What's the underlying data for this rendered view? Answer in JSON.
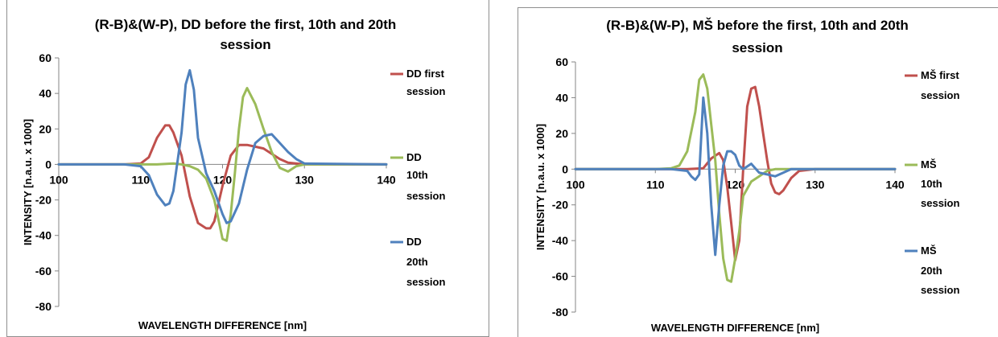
{
  "chart_data": [
    {
      "type": "line",
      "title_line1": "(R-B)&(W-P), DD before the first, 10th and 20th",
      "title_line2": "session",
      "xlabel": "WAVELENGTH DIFFERENCE [nm]",
      "ylabel": "INTENSITY [n.a.u. x 1000]",
      "xlim": [
        100,
        140
      ],
      "ylim": [
        -80,
        60
      ],
      "xticks": [
        100,
        110,
        120,
        130,
        140
      ],
      "yticks": [
        60,
        40,
        20,
        0,
        -20,
        -40,
        -60,
        -80
      ],
      "grid": false,
      "legend_position": "right",
      "series": [
        {
          "name_lines": [
            "DD first",
            "session"
          ],
          "color": "#c0504d",
          "points": [
            [
              100,
              0
            ],
            [
              108,
              0
            ],
            [
              110,
              0.5
            ],
            [
              111,
              4
            ],
            [
              112,
              15
            ],
            [
              113,
              22
            ],
            [
              113.5,
              22
            ],
            [
              114,
              18
            ],
            [
              115,
              5
            ],
            [
              116,
              -18
            ],
            [
              117,
              -33
            ],
            [
              118,
              -36
            ],
            [
              118.5,
              -36
            ],
            [
              119,
              -32
            ],
            [
              120,
              -12
            ],
            [
              121,
              5
            ],
            [
              122,
              11
            ],
            [
              123,
              11
            ],
            [
              124,
              10
            ],
            [
              125,
              9
            ],
            [
              126,
              6
            ],
            [
              127,
              3
            ],
            [
              128,
              1
            ],
            [
              130,
              0
            ],
            [
              140,
              0
            ]
          ]
        },
        {
          "name_lines": [
            "DD",
            "10th",
            "session"
          ],
          "color": "#9bbb59",
          "points": [
            [
              100,
              0
            ],
            [
              112,
              0
            ],
            [
              114,
              0.5
            ],
            [
              115,
              0
            ],
            [
              116,
              -1
            ],
            [
              117,
              -3
            ],
            [
              118,
              -8
            ],
            [
              119,
              -20
            ],
            [
              120,
              -42
            ],
            [
              120.5,
              -43
            ],
            [
              121,
              -28
            ],
            [
              121.5,
              -5
            ],
            [
              122,
              20
            ],
            [
              122.5,
              38
            ],
            [
              123,
              43
            ],
            [
              124,
              34
            ],
            [
              125,
              20
            ],
            [
              126,
              7
            ],
            [
              127,
              -2
            ],
            [
              128,
              -4
            ],
            [
              129,
              -1
            ],
            [
              130,
              0
            ],
            [
              140,
              0
            ]
          ]
        },
        {
          "name_lines": [
            "DD",
            "20th",
            "session"
          ],
          "color": "#4f81bd",
          "points": [
            [
              100,
              0
            ],
            [
              108,
              0
            ],
            [
              110,
              -1
            ],
            [
              111,
              -6
            ],
            [
              112,
              -17
            ],
            [
              113,
              -23
            ],
            [
              113.5,
              -22
            ],
            [
              114,
              -15
            ],
            [
              115,
              18
            ],
            [
              115.5,
              45
            ],
            [
              116,
              53
            ],
            [
              116.5,
              42
            ],
            [
              117,
              15
            ],
            [
              118,
              -5
            ],
            [
              119,
              -15
            ],
            [
              120,
              -28
            ],
            [
              120.5,
              -33
            ],
            [
              121,
              -32
            ],
            [
              122,
              -22
            ],
            [
              123,
              -3
            ],
            [
              124,
              12
            ],
            [
              125,
              16
            ],
            [
              126,
              17
            ],
            [
              127,
              12
            ],
            [
              128,
              7
            ],
            [
              129,
              3
            ],
            [
              130,
              0.5
            ],
            [
              140,
              0
            ]
          ]
        }
      ]
    },
    {
      "type": "line",
      "title_line1": "(R-B)&(W-P), MŠ before the first, 10th and 20th",
      "title_line2": "session",
      "xlabel": "WAVELENGTH DIFFERENCE [nm]",
      "ylabel": "INTENSITY [n.a.u. x 1000]",
      "xlim": [
        100,
        140
      ],
      "ylim": [
        -80,
        60
      ],
      "xticks": [
        100,
        110,
        120,
        130,
        140
      ],
      "yticks": [
        60,
        40,
        20,
        0,
        -20,
        -40,
        -60,
        -80
      ],
      "grid": false,
      "legend_position": "right",
      "series": [
        {
          "name_lines": [
            "MŠ first",
            "session"
          ],
          "color": "#c0504d",
          "points": [
            [
              100,
              0
            ],
            [
              114,
              0
            ],
            [
              116,
              0.5
            ],
            [
              117,
              6
            ],
            [
              118,
              9
            ],
            [
              118.5,
              5
            ],
            [
              119,
              -10
            ],
            [
              119.5,
              -30
            ],
            [
              120,
              -51
            ],
            [
              120.5,
              -40
            ],
            [
              121,
              0
            ],
            [
              121.5,
              35
            ],
            [
              122,
              45
            ],
            [
              122.5,
              46
            ],
            [
              123,
              35
            ],
            [
              123.5,
              20
            ],
            [
              124,
              5
            ],
            [
              124.5,
              -8
            ],
            [
              125,
              -13
            ],
            [
              125.5,
              -14
            ],
            [
              126,
              -12
            ],
            [
              127,
              -5
            ],
            [
              128,
              -1
            ],
            [
              130,
              0
            ],
            [
              140,
              0
            ]
          ]
        },
        {
          "name_lines": [
            "MŠ",
            "10th",
            "session"
          ],
          "color": "#9bbb59",
          "points": [
            [
              100,
              0
            ],
            [
              110,
              0
            ],
            [
              112,
              0.5
            ],
            [
              113,
              2
            ],
            [
              114,
              10
            ],
            [
              115,
              32
            ],
            [
              115.5,
              50
            ],
            [
              116,
              53
            ],
            [
              116.5,
              45
            ],
            [
              117,
              25
            ],
            [
              117.5,
              5
            ],
            [
              118,
              -25
            ],
            [
              118.5,
              -50
            ],
            [
              119,
              -62
            ],
            [
              119.5,
              -63
            ],
            [
              120,
              -50
            ],
            [
              120.5,
              -35
            ],
            [
              121,
              -15
            ],
            [
              122,
              -7
            ],
            [
              123,
              -4
            ],
            [
              124,
              -1
            ],
            [
              125,
              0
            ],
            [
              140,
              0
            ]
          ]
        },
        {
          "name_lines": [
            "MŠ",
            "20th",
            "session"
          ],
          "color": "#4f81bd",
          "points": [
            [
              100,
              0
            ],
            [
              112,
              0
            ],
            [
              114,
              -1
            ],
            [
              114.5,
              -4
            ],
            [
              115,
              -6
            ],
            [
              115.5,
              -3
            ],
            [
              116,
              40
            ],
            [
              116.5,
              20
            ],
            [
              117,
              -20
            ],
            [
              117.5,
              -48
            ],
            [
              118,
              -20
            ],
            [
              118.5,
              2
            ],
            [
              119,
              10
            ],
            [
              119.5,
              10
            ],
            [
              120,
              8
            ],
            [
              120.5,
              2
            ],
            [
              121,
              0
            ],
            [
              122,
              3
            ],
            [
              123,
              -2
            ],
            [
              124,
              -3
            ],
            [
              125,
              -4
            ],
            [
              126,
              -2
            ],
            [
              127,
              0
            ],
            [
              140,
              0
            ]
          ]
        }
      ]
    }
  ]
}
